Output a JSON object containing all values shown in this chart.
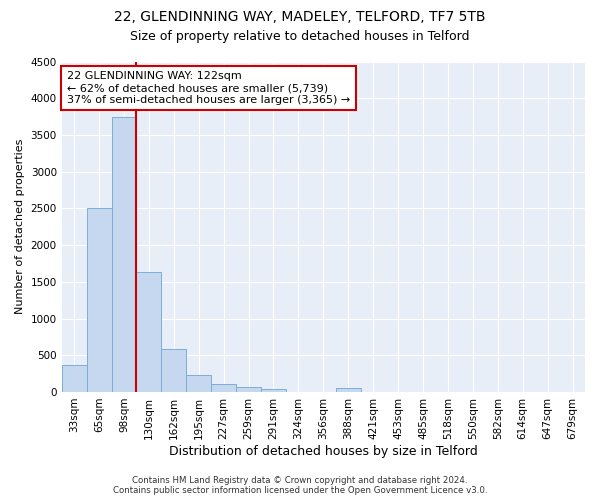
{
  "title1": "22, GLENDINNING WAY, MADELEY, TELFORD, TF7 5TB",
  "title2": "Size of property relative to detached houses in Telford",
  "xlabel": "Distribution of detached houses by size in Telford",
  "ylabel": "Number of detached properties",
  "categories": [
    "33sqm",
    "65sqm",
    "98sqm",
    "130sqm",
    "162sqm",
    "195sqm",
    "227sqm",
    "259sqm",
    "291sqm",
    "324sqm",
    "356sqm",
    "388sqm",
    "421sqm",
    "453sqm",
    "485sqm",
    "518sqm",
    "550sqm",
    "582sqm",
    "614sqm",
    "647sqm",
    "679sqm"
  ],
  "values": [
    370,
    2500,
    3750,
    1640,
    590,
    230,
    110,
    65,
    40,
    0,
    0,
    50,
    0,
    0,
    0,
    0,
    0,
    0,
    0,
    0,
    0
  ],
  "bar_color": "#c5d8f0",
  "bar_edge_color": "#7bafd4",
  "vline_x": 2.5,
  "vline_color": "#cc0000",
  "annotation_line1": "22 GLENDINNING WAY: 122sqm",
  "annotation_line2": "← 62% of detached houses are smaller (5,739)",
  "annotation_line3": "37% of semi-detached houses are larger (3,365) →",
  "ylim": [
    0,
    4500
  ],
  "yticks": [
    0,
    500,
    1000,
    1500,
    2000,
    2500,
    3000,
    3500,
    4000,
    4500
  ],
  "bg_color": "#ffffff",
  "plot_bg_color": "#e8eef8",
  "grid_color": "#ffffff",
  "footer": "Contains HM Land Registry data © Crown copyright and database right 2024.\nContains public sector information licensed under the Open Government Licence v3.0.",
  "title1_fontsize": 10,
  "title2_fontsize": 9,
  "xlabel_fontsize": 9,
  "ylabel_fontsize": 8,
  "annotation_fontsize": 8,
  "tick_fontsize": 7.5
}
